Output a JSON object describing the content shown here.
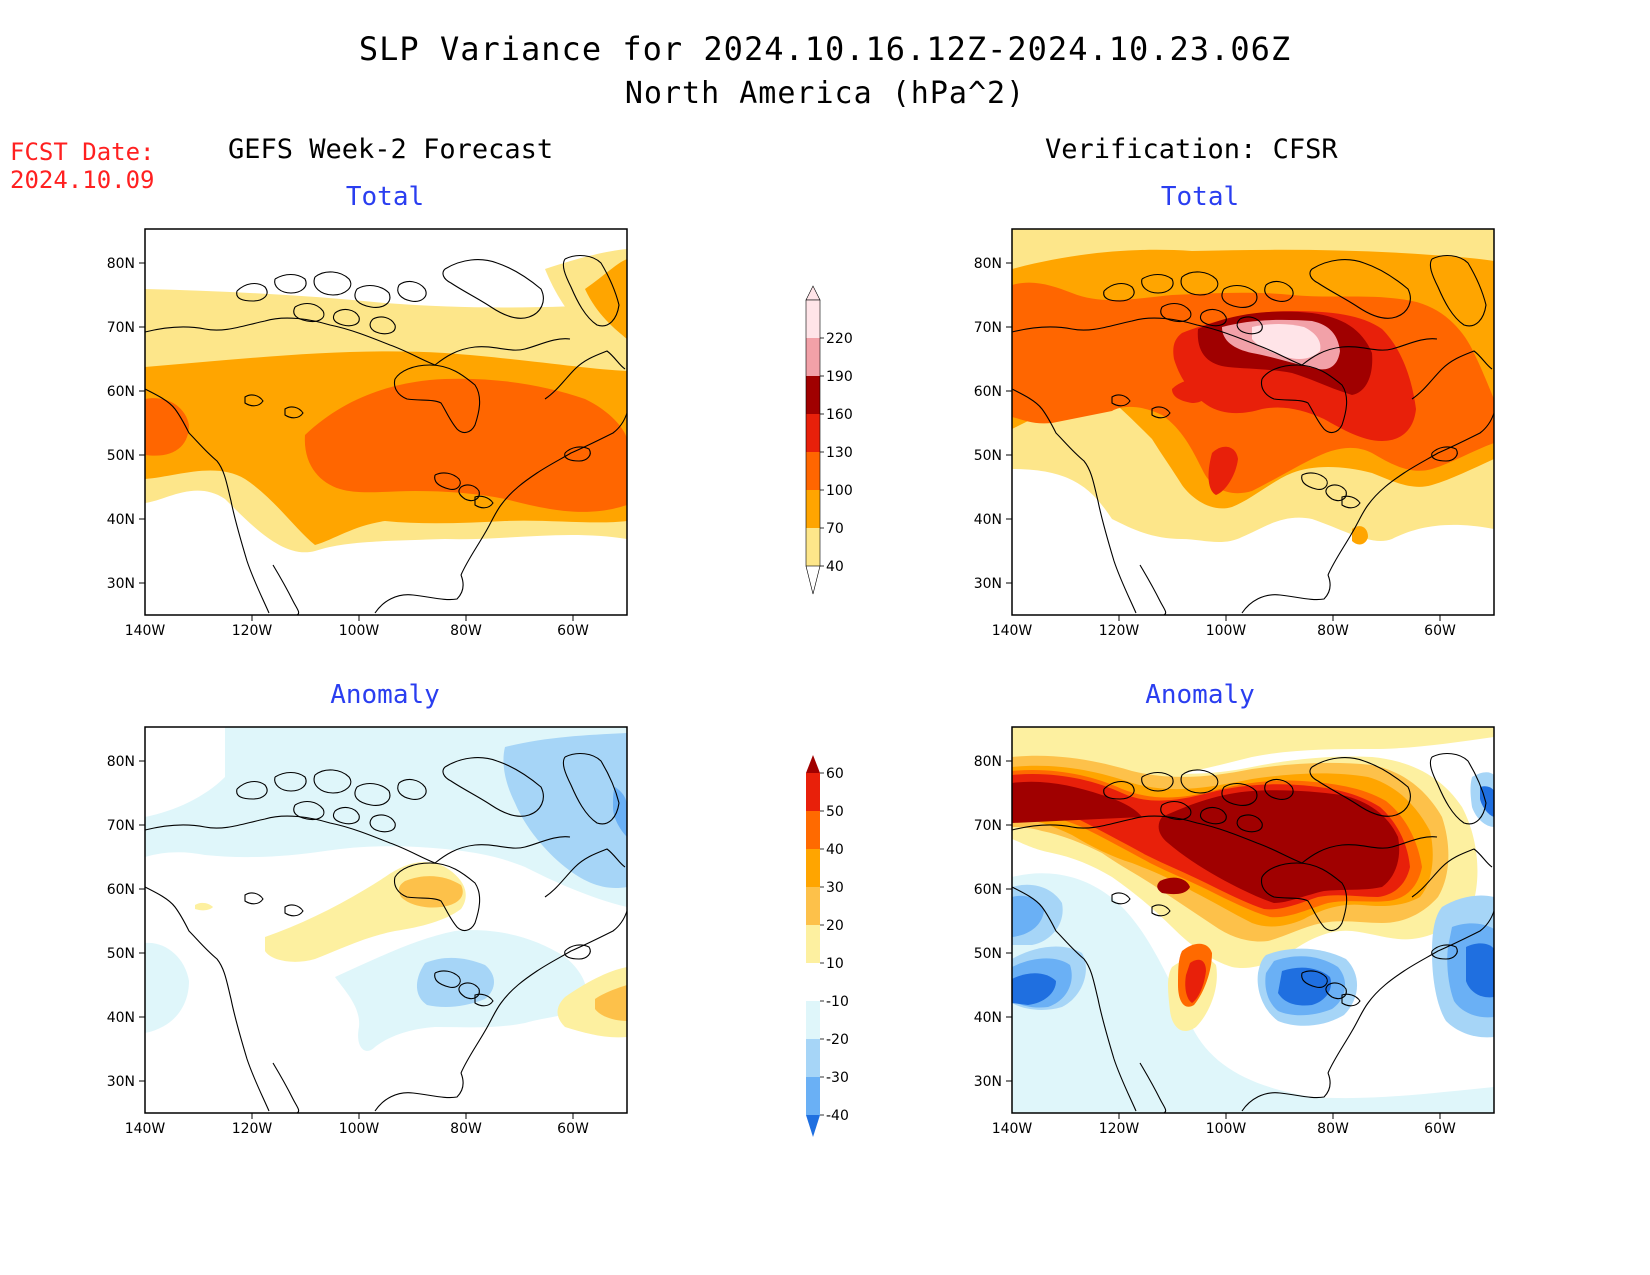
{
  "title": "SLP Variance for 2024.10.16.12Z-2024.10.23.06Z",
  "subtitle": "North America (hPa^2)",
  "fcst_label": "FCST Date:",
  "fcst_date": "2024.10.09",
  "columns": {
    "left": "GEFS Week-2 Forecast",
    "right": "Verification: CFSR"
  },
  "panel_titles": {
    "total": "Total",
    "anomaly": "Anomaly"
  },
  "axes": {
    "lat_labels": [
      "80N",
      "70N",
      "60N",
      "50N",
      "40N",
      "30N"
    ],
    "lon_labels": [
      "140W",
      "120W",
      "100W",
      "80W",
      "60W"
    ]
  },
  "colorbars": {
    "total": {
      "levels": [
        "40",
        "70",
        "100",
        "130",
        "160",
        "190",
        "220"
      ],
      "colors": [
        "#fde68a",
        "#ffa500",
        "#ff6600",
        "#e8200a",
        "#a00000",
        "#f2a1a8",
        "#ffe4e8"
      ]
    },
    "anomaly": {
      "levels": [
        "60",
        "50",
        "40",
        "30",
        "20",
        "10",
        "-10",
        "-20",
        "-30",
        "-40"
      ],
      "colors": [
        "#a00000",
        "#e8200a",
        "#ff6a00",
        "#ffa500",
        "#fdc14a",
        "#fdf0a0",
        "#ffffff",
        "#dff6fa",
        "#a6d5f7",
        "#6ab0f5",
        "#1f6fe0"
      ]
    }
  }
}
